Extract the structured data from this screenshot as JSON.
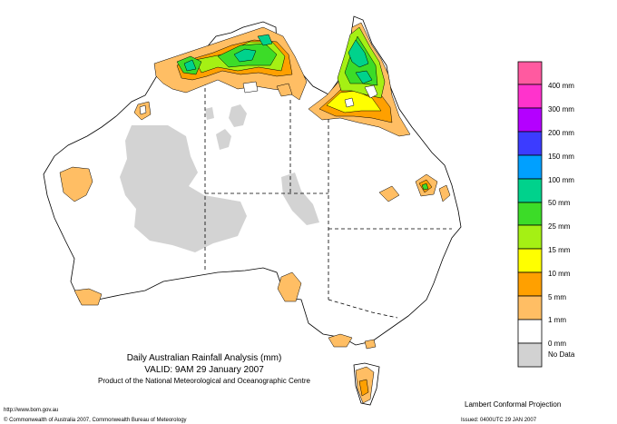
{
  "map": {
    "title": "Daily Australian Rainfall Analysis (mm)",
    "valid": "VALID: 9AM 29 January 2007",
    "product": "Product of the National Meteorological and Oceanographic Centre",
    "projection": "Lambert Conformal Projection",
    "url": "http://www.bom.gov.au",
    "copyright": "© Commonwealth of Australia 2007, Commonwealth Bureau of Meteorology",
    "issued": "Issued: 0400UTC 29 JAN 2007"
  },
  "legend": [
    {
      "label": "",
      "color": "#ff5aa0"
    },
    {
      "label": "400 mm",
      "color": "#ff33cc"
    },
    {
      "label": "300 mm",
      "color": "#b400ff"
    },
    {
      "label": "200 mm",
      "color": "#3c3cff"
    },
    {
      "label": "150 mm",
      "color": "#00a0ff"
    },
    {
      "label": "100 mm",
      "color": "#00d28c"
    },
    {
      "label": "50 mm",
      "color": "#3cdc28"
    },
    {
      "label": "25 mm",
      "color": "#a5f014"
    },
    {
      "label": "15 mm",
      "color": "#ffff00"
    },
    {
      "label": "10 mm",
      "color": "#ffa000"
    },
    {
      "label": "5 mm",
      "color": "#ffbe64"
    },
    {
      "label": "1 mm",
      "color": "#ffffff"
    },
    {
      "label": "0 mm",
      "color": "#d2d2d2"
    },
    {
      "label": "No Data",
      "color": ""
    }
  ]
}
